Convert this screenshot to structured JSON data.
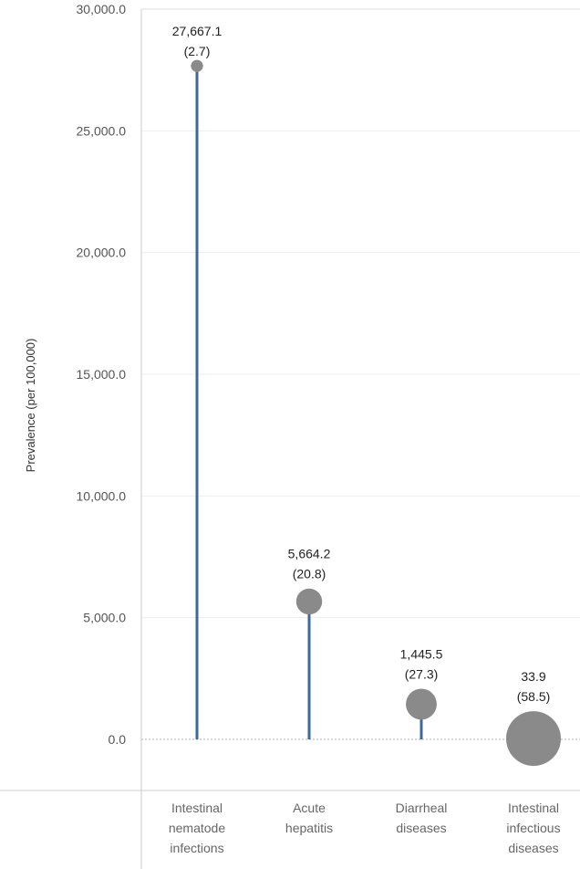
{
  "chart_data": {
    "type": "lollipop",
    "ylabel": "Prevalence (per 100,000)",
    "ylim": [
      0,
      30000
    ],
    "yticks": [
      "0.0",
      "5,000.0",
      "10,000.0",
      "15,000.0",
      "20,000.0",
      "25,000.0",
      "30,000.0"
    ],
    "ytick_values": [
      0,
      5000,
      10000,
      15000,
      20000,
      25000,
      30000
    ],
    "categories": [
      [
        "Intestinal",
        "nematode",
        "infections"
      ],
      [
        "Acute",
        "hepatitis"
      ],
      [
        "Diarrheal",
        "diseases"
      ],
      [
        "Intestinal",
        "infectious",
        "diseases"
      ]
    ],
    "values": [
      27667.1,
      5664.2,
      1445.5,
      33.9
    ],
    "value_labels": [
      "27,667.1",
      "5,664.2",
      "1,445.5",
      "33.9"
    ],
    "secondary_values": [
      2.7,
      20.8,
      27.3,
      58.5
    ],
    "secondary_labels": [
      "(2.7)",
      "(20.8)",
      "(27.3)",
      "(58.5)"
    ],
    "colors": {
      "stem": "#3d6a99",
      "marker": "#8a8a8a",
      "grid": "#eeeeee",
      "axis": "#cccccc",
      "zero": "#aaaaaa"
    }
  }
}
